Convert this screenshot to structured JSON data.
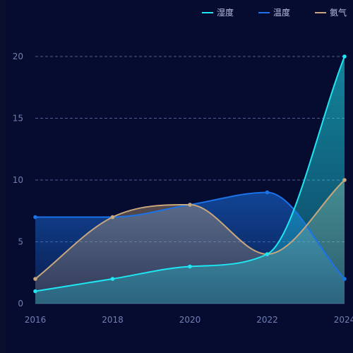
{
  "colors": {
    "background": "#060b30",
    "grid": "#4f5f8f",
    "axis_text": "#6f80b3",
    "humidity": "#1ee6f2",
    "temperature": "#1a73e8",
    "ammonia": "#c9a77c"
  },
  "chart_data": {
    "type": "area",
    "x": [
      2016,
      2018,
      2020,
      2022,
      2024
    ],
    "x_tick_labels": [
      "2016",
      "2018",
      "2020",
      "2022",
      "2024"
    ],
    "y_tick_labels": [
      "0",
      "5",
      "10",
      "15",
      "20"
    ],
    "ylim": [
      0,
      20
    ],
    "grid": true,
    "legend_position": "top-right",
    "series": [
      {
        "name": "湿度",
        "color": "#1ee6f2",
        "values": [
          1,
          2,
          3,
          4,
          20
        ]
      },
      {
        "name": "温度",
        "color": "#1a73e8",
        "values": [
          7,
          7,
          8,
          9,
          2
        ]
      },
      {
        "name": "氨气",
        "color": "#c9a77c",
        "values": [
          2,
          7,
          8,
          4,
          10
        ]
      }
    ]
  }
}
